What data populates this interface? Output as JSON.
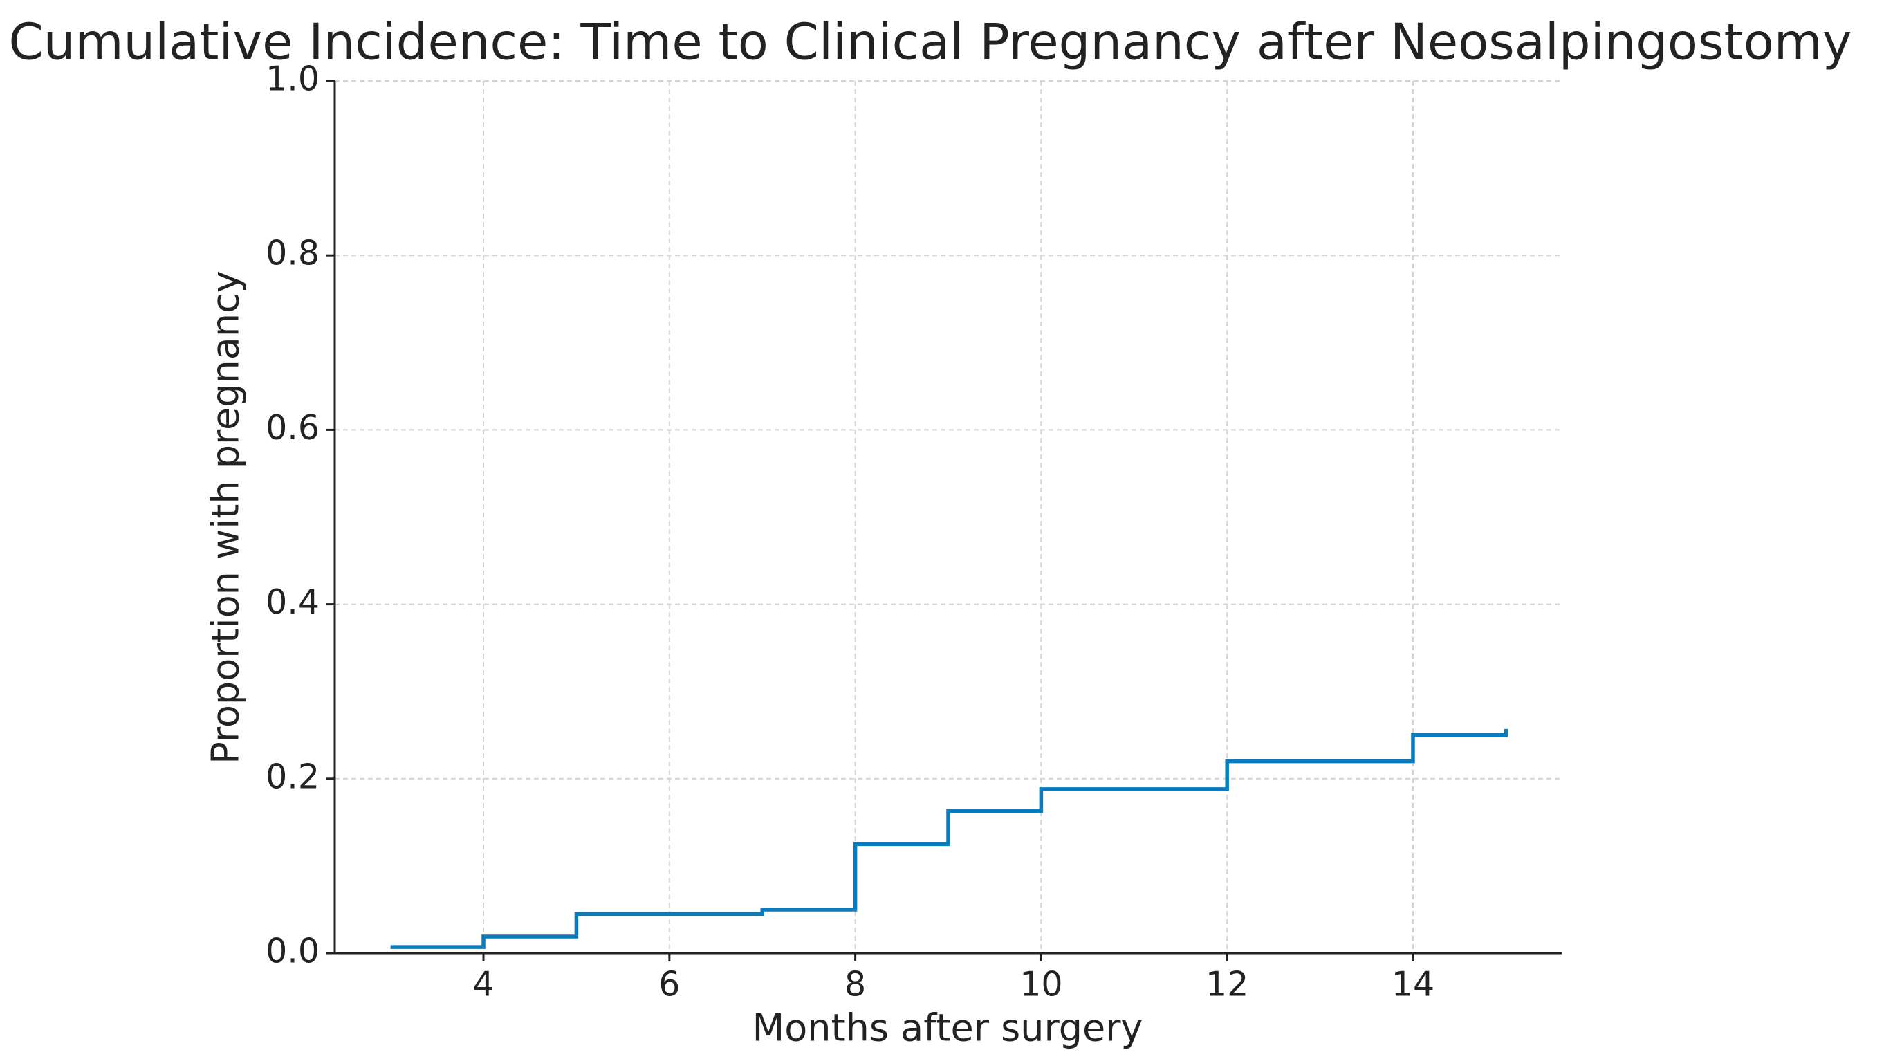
{
  "chart_data": {
    "type": "step",
    "title": "Cumulative Incidence: Time to Clinical Pregnancy after Neosalpingostomy",
    "xlabel": "Months after surgery",
    "ylabel": "Proportion with pregnancy",
    "x": [
      3,
      4,
      5,
      7,
      8,
      9,
      10,
      12,
      14,
      15
    ],
    "series": [
      {
        "color": "#0a7bbd",
        "values": [
          0.007,
          0.019,
          0.045,
          0.05,
          0.125,
          0.163,
          0.188,
          0.22,
          0.25,
          0.257
        ]
      }
    ],
    "xlim": [
      2.4,
      15.6
    ],
    "xticks": [
      4,
      6,
      8,
      10,
      12,
      14
    ],
    "ylim": [
      0,
      1
    ],
    "yticks": [
      {
        "value": 0,
        "label": "0.0"
      },
      0.2,
      0.4,
      0.6,
      0.8,
      {
        "value": 1,
        "label": "1.0"
      }
    ],
    "grid": true
  }
}
